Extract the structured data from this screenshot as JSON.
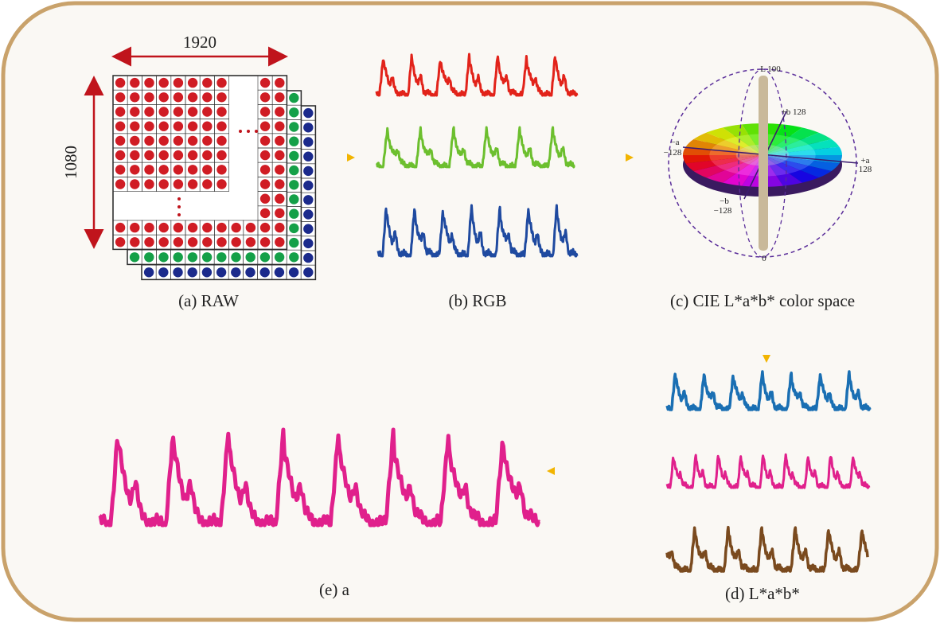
{
  "width_label": "1920",
  "height_label": "1080",
  "panels": {
    "a": "(a) RAW",
    "b": "(b) RGB",
    "c": "(c) CIE L*a*b* color space",
    "d": "(d) L*a*b*",
    "e": "(e) a"
  },
  "colorspace": {
    "l_top": "L 100",
    "l_bottom": "0",
    "plus_b": "+b 128",
    "minus_a": [
      "−a",
      "−128"
    ],
    "plus_a": [
      "+a",
      "128"
    ],
    "minus_b": [
      "−b",
      "−128"
    ]
  }
}
